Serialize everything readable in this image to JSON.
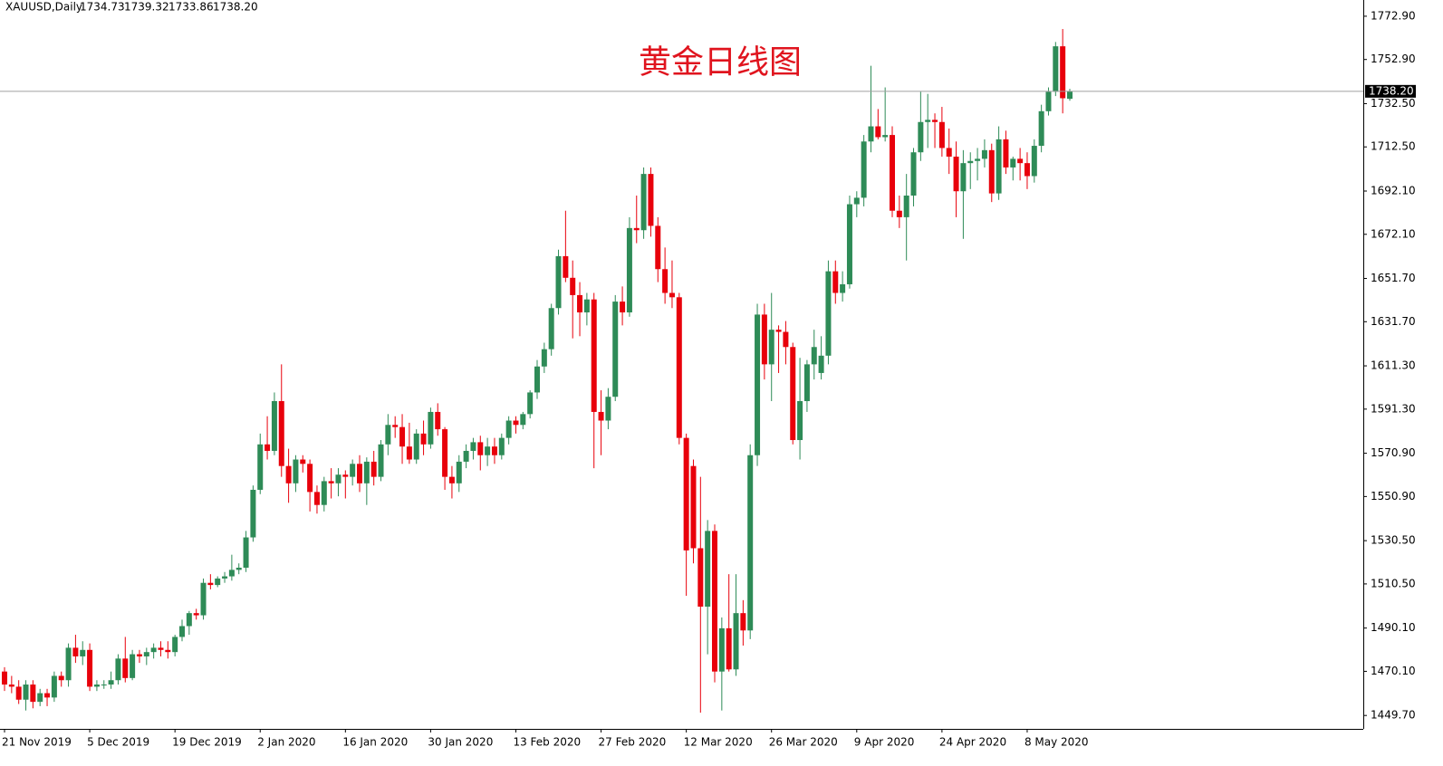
{
  "chart_data": {
    "type": "candlestick",
    "header": {
      "symbol": "XAUUSD,Daily",
      "ohlc": [
        "1734.73",
        "1739.32",
        "1733.86",
        "1738.20"
      ]
    },
    "title": "黄金日线图",
    "up_color": "#2e8b57",
    "down_color": "#e8000b",
    "categories": [
      "21 Nov 2019",
      null,
      null,
      null,
      null,
      null,
      null,
      null,
      null,
      null,
      null,
      null,
      "5 Dec 2019",
      null,
      null,
      null,
      null,
      null,
      null,
      null,
      null,
      null,
      null,
      null,
      "19 Dec 2019",
      null,
      null,
      null,
      null,
      null,
      null,
      null,
      null,
      null,
      null,
      null,
      "2 Jan 2020",
      null,
      null,
      null,
      null,
      null,
      null,
      null,
      null,
      null,
      null,
      null,
      "16 Jan 2020",
      null,
      null,
      null,
      null,
      null,
      null,
      null,
      null,
      null,
      null,
      null,
      "30 Jan 2020",
      null,
      null,
      null,
      null,
      null,
      null,
      null,
      null,
      null,
      null,
      null,
      "13 Feb 2020",
      null,
      null,
      null,
      null,
      null,
      null,
      null,
      null,
      null,
      null,
      null,
      "27 Feb 2020",
      null,
      null,
      null,
      null,
      null,
      null,
      null,
      null,
      null,
      null,
      null,
      "12 Mar 2020",
      null,
      null,
      null,
      null,
      null,
      null,
      null,
      null,
      null,
      null,
      null,
      "26 Mar 2020",
      null,
      null,
      null,
      null,
      null,
      null,
      null,
      null,
      null,
      null,
      null,
      "9 Apr 2020",
      null,
      null,
      null,
      null,
      null,
      null,
      null,
      null,
      null,
      null,
      null,
      "24 Apr 2020",
      null,
      null,
      null,
      null,
      null,
      null,
      null,
      null,
      null,
      null,
      null,
      "8 May 2020",
      null,
      null,
      null,
      null,
      null,
      null
    ],
    "open": [
      1470,
      1464,
      1463,
      1457,
      1464,
      1456,
      1460,
      1458,
      1468,
      1466,
      1481,
      1477,
      1480,
      1463,
      1464,
      1464,
      1466,
      1476,
      1467,
      1478,
      1477,
      1479,
      1481,
      1480,
      1479,
      1486,
      1491,
      1497,
      1496,
      1511,
      1510,
      1513,
      1514,
      1517,
      1518,
      1532,
      1554,
      1575,
      1572,
      1595,
      1565,
      1557,
      1568,
      1566,
      1553,
      1547,
      1558,
      1557,
      1561,
      1560,
      1566,
      1557,
      1567,
      1560,
      1575,
      1584,
      1583,
      1574,
      1568,
      1580,
      1575,
      1590,
      1582,
      1560,
      1557,
      1567,
      1572,
      1576,
      1570,
      1574,
      1570,
      1578,
      1586,
      1584,
      1589,
      1599,
      1611,
      1619,
      1638,
      1662,
      1652,
      1644,
      1636,
      1642,
      1590,
      1586,
      1597,
      1641,
      1636,
      1675,
      1674,
      1700,
      1676,
      1656,
      1645,
      1643,
      1578,
      1565,
      1527,
      1500,
      1535,
      1470,
      1490,
      1471,
      1497,
      1489,
      1570,
      1635,
      1612,
      1628,
      1627,
      1620,
      1577,
      1595,
      1612,
      1608,
      1616,
      1655,
      1645,
      1649,
      1686,
      1689,
      1715,
      1722,
      1717,
      1718,
      1683,
      1680,
      1690,
      1710,
      1724,
      1725,
      1724,
      1712,
      1708,
      1692,
      1705,
      1706,
      1707,
      1711,
      1691,
      1716,
      1703,
      1707,
      1705,
      1699,
      1713,
      1729,
      1738,
      1759,
      1734.73
    ],
    "high": [
      1472,
      1468,
      1466,
      1466,
      1466,
      1462,
      1462,
      1470,
      1470,
      1483,
      1487,
      1484,
      1483,
      1466,
      1466,
      1470,
      1478,
      1486,
      1480,
      1480,
      1481,
      1483,
      1484,
      1484,
      1487,
      1494,
      1498,
      1499,
      1513,
      1515,
      1514,
      1516,
      1524,
      1520,
      1535,
      1556,
      1580,
      1588,
      1599,
      1612,
      1573,
      1570,
      1570,
      1568,
      1556,
      1560,
      1564,
      1564,
      1563,
      1568,
      1570,
      1569,
      1572,
      1577,
      1589,
      1588,
      1589,
      1585,
      1582,
      1586,
      1592,
      1594,
      1583,
      1565,
      1570,
      1575,
      1578,
      1579,
      1578,
      1578,
      1580,
      1588,
      1588,
      1590,
      1600,
      1614,
      1622,
      1640,
      1665,
      1683,
      1660,
      1650,
      1645,
      1645,
      1600,
      1601,
      1644,
      1648,
      1680,
      1690,
      1703,
      1703,
      1680,
      1666,
      1660,
      1645,
      1580,
      1568,
      1560,
      1540,
      1538,
      1495,
      1515,
      1515,
      1503,
      1575,
      1640,
      1640,
      1645,
      1630,
      1632,
      1622,
      1615,
      1614,
      1628,
      1625,
      1660,
      1660,
      1655,
      1690,
      1692,
      1718,
      1750,
      1730,
      1740,
      1722,
      1690,
      1700,
      1712,
      1738,
      1737,
      1728,
      1731,
      1721,
      1715,
      1711,
      1710,
      1712,
      1716,
      1714,
      1722,
      1720,
      1708,
      1712,
      1710,
      1716,
      1732,
      1740,
      1761,
      1767,
      1739.32
    ],
    "low": [
      1461,
      1460,
      1455,
      1452,
      1453,
      1454,
      1454,
      1456,
      1463,
      1463,
      1474,
      1473,
      1461,
      1461,
      1462,
      1462,
      1464,
      1465,
      1466,
      1474,
      1473,
      1476,
      1477,
      1476,
      1477,
      1484,
      1487,
      1494,
      1494,
      1508,
      1509,
      1511,
      1512,
      1515,
      1516,
      1530,
      1552,
      1568,
      1570,
      1560,
      1548,
      1553,
      1562,
      1544,
      1543,
      1544,
      1550,
      1551,
      1550,
      1556,
      1553,
      1547,
      1556,
      1558,
      1570,
      1578,
      1566,
      1566,
      1566,
      1570,
      1573,
      1579,
      1554,
      1550,
      1553,
      1564,
      1568,
      1563,
      1565,
      1566,
      1568,
      1575,
      1580,
      1582,
      1587,
      1596,
      1608,
      1616,
      1635,
      1650,
      1624,
      1625,
      1630,
      1564,
      1570,
      1582,
      1595,
      1630,
      1634,
      1668,
      1670,
      1671,
      1650,
      1640,
      1638,
      1575,
      1505,
      1520,
      1451,
      1478,
      1465,
      1452,
      1470,
      1468,
      1482,
      1485,
      1565,
      1605,
      1595,
      1608,
      1612,
      1575,
      1568,
      1590,
      1605,
      1605,
      1612,
      1640,
      1641,
      1647,
      1680,
      1685,
      1710,
      1716,
      1715,
      1680,
      1675,
      1660,
      1685,
      1706,
      1712,
      1712,
      1708,
      1700,
      1680,
      1670,
      1693,
      1697,
      1703,
      1687,
      1688,
      1700,
      1697,
      1697,
      1693,
      1696,
      1710,
      1727,
      1736,
      1728,
      1733.86
    ],
    "close": [
      1464,
      1463,
      1457,
      1464,
      1456,
      1460,
      1458,
      1468,
      1466,
      1481,
      1477,
      1480,
      1463,
      1464,
      1464,
      1466,
      1476,
      1467,
      1478,
      1477,
      1479,
      1481,
      1480,
      1479,
      1486,
      1491,
      1497,
      1496,
      1511,
      1510,
      1513,
      1514,
      1517,
      1518,
      1532,
      1554,
      1575,
      1572,
      1595,
      1565,
      1557,
      1568,
      1566,
      1553,
      1547,
      1558,
      1557,
      1561,
      1560,
      1566,
      1557,
      1567,
      1560,
      1575,
      1584,
      1583,
      1574,
      1568,
      1580,
      1575,
      1590,
      1582,
      1560,
      1557,
      1567,
      1572,
      1576,
      1570,
      1574,
      1570,
      1578,
      1586,
      1584,
      1589,
      1599,
      1611,
      1619,
      1638,
      1662,
      1652,
      1644,
      1636,
      1642,
      1590,
      1586,
      1597,
      1641,
      1636,
      1675,
      1674,
      1700,
      1676,
      1656,
      1645,
      1643,
      1578,
      1526,
      1527,
      1500,
      1535,
      1470,
      1490,
      1471,
      1497,
      1489,
      1570,
      1635,
      1612,
      1628,
      1627,
      1620,
      1577,
      1595,
      1612,
      1620,
      1616,
      1655,
      1645,
      1649,
      1686,
      1689,
      1715,
      1722,
      1717,
      1718,
      1683,
      1680,
      1690,
      1710,
      1724,
      1725,
      1724,
      1712,
      1708,
      1692,
      1705,
      1706,
      1707,
      1711,
      1691,
      1716,
      1703,
      1707,
      1705,
      1699,
      1713,
      1729,
      1738,
      1759,
      1735,
      1738.2
    ],
    "current_price": {
      "value": 1738.2,
      "label": "1738.20"
    },
    "ylim": [
      1443.5,
      1780.4
    ],
    "yticks": [
      {
        "value": 1772.9,
        "label": "1772.90"
      },
      {
        "value": 1752.9,
        "label": "1752.90"
      },
      {
        "value": 1732.5,
        "label": "1732.50"
      },
      {
        "value": 1712.5,
        "label": "1712.50"
      },
      {
        "value": 1692.1,
        "label": "1692.10"
      },
      {
        "value": 1672.1,
        "label": "1672.10"
      },
      {
        "value": 1651.7,
        "label": "1651.70"
      },
      {
        "value": 1631.7,
        "label": "1631.70"
      },
      {
        "value": 1611.3,
        "label": "1611.30"
      },
      {
        "value": 1591.3,
        "label": "1591.30"
      },
      {
        "value": 1570.9,
        "label": "1570.90"
      },
      {
        "value": 1550.9,
        "label": "1550.90"
      },
      {
        "value": 1530.5,
        "label": "1530.50"
      },
      {
        "value": 1510.5,
        "label": "1510.50"
      },
      {
        "value": 1490.1,
        "label": "1490.10"
      },
      {
        "value": 1470.1,
        "label": "1470.10"
      },
      {
        "value": 1449.7,
        "label": "1449.70"
      }
    ]
  }
}
